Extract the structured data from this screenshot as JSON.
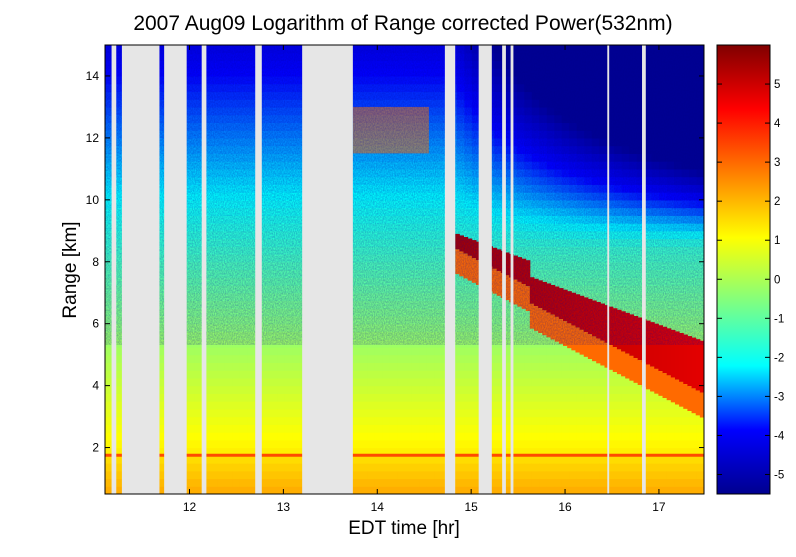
{
  "chart_data": {
    "type": "heatmap",
    "title": "2007 Aug09  Logarithm of Range corrected Power(532nm)",
    "xlabel": "EDT time [hr]",
    "ylabel": "Range [km]",
    "xlim": [
      11.1,
      17.48
    ],
    "ylim": [
      0.5,
      15.0
    ],
    "xticks": [
      12,
      13,
      14,
      15,
      16,
      17
    ],
    "yticks": [
      2,
      4,
      6,
      8,
      10,
      12,
      14
    ],
    "colorbar": {
      "range": [
        -5.5,
        6.0
      ],
      "ticks": [
        -5,
        -4,
        -3,
        -2,
        -1,
        0,
        1,
        2,
        3,
        4,
        5
      ],
      "colormap": "jet",
      "colors": [
        "#00008f",
        "#0000ff",
        "#00ffff",
        "#80ff80",
        "#ffff00",
        "#ff8000",
        "#ff0000",
        "#800000"
      ]
    },
    "missing_color": "#e6e6e6",
    "data_gaps_hr": [
      [
        11.17,
        11.22
      ],
      [
        11.28,
        11.68
      ],
      [
        11.73,
        11.97
      ],
      [
        12.13,
        12.18
      ],
      [
        12.7,
        12.77
      ],
      [
        13.2,
        13.74
      ],
      [
        14.72,
        14.83
      ],
      [
        15.08,
        15.22
      ],
      [
        15.33,
        15.37
      ],
      [
        15.42,
        15.45
      ],
      [
        16.45,
        16.47
      ],
      [
        16.82,
        16.86
      ]
    ],
    "features": [
      {
        "name": "boundary layer",
        "range_km": [
          0.5,
          1.8
        ],
        "log_power": 2.2
      },
      {
        "name": "cloud layer",
        "time_hr": [
          14.83,
          17.48
        ],
        "range_km": [
          4.3,
          9.5
        ],
        "log_power_max": 5.5
      },
      {
        "name": "high cirrus",
        "time_hr": [
          13.74,
          14.55
        ],
        "range_km": [
          11.5,
          13.0
        ],
        "log_power": 2.8
      }
    ]
  }
}
